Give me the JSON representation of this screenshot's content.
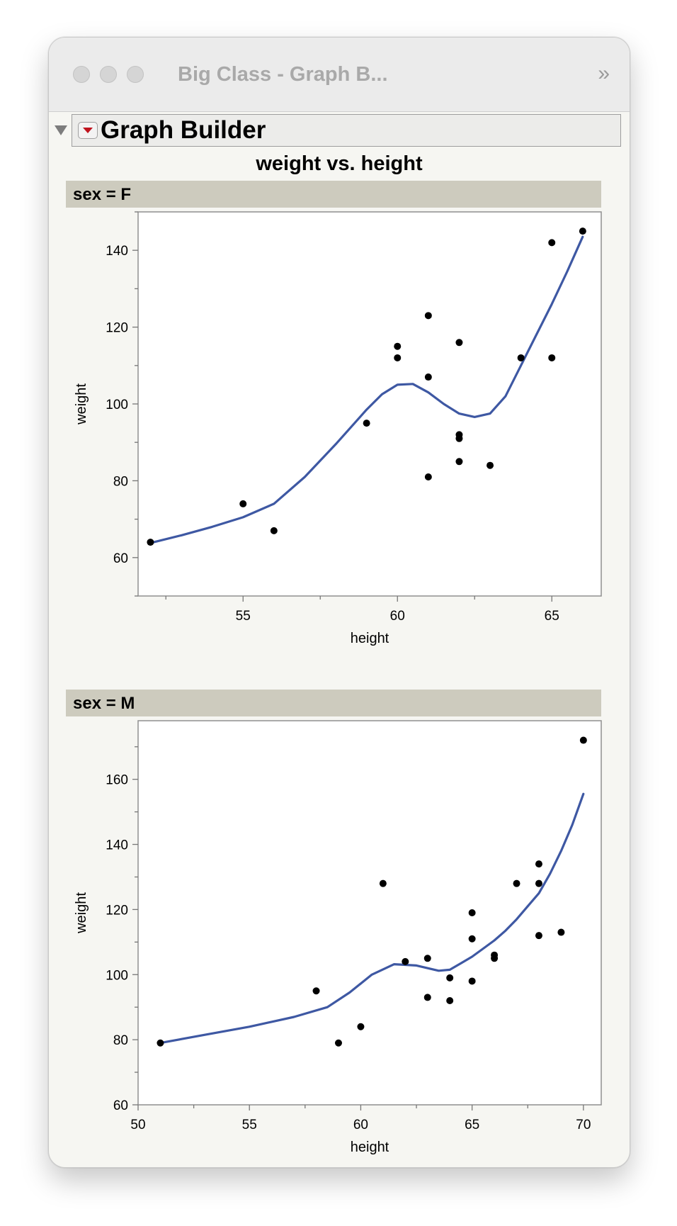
{
  "window": {
    "title": "Big Class - Graph B...",
    "more_icon": "double-chevron-right-icon"
  },
  "graph_builder": {
    "title": "Graph Builder",
    "chart_title": "weight vs. height"
  },
  "colors": {
    "smoother": "#3e58a3",
    "point": "#000000",
    "strip": "#cdcbbe"
  },
  "chart_data": [
    {
      "type": "scatter",
      "panel_label": "sex = F",
      "xlabel": "height",
      "ylabel": "weight",
      "xlim": [
        51.6,
        66.6
      ],
      "ylim": [
        50,
        150
      ],
      "xticks": [
        55,
        60,
        65
      ],
      "yticks": [
        60,
        80,
        100,
        120,
        140
      ],
      "points": [
        [
          52,
          64
        ],
        [
          55,
          74
        ],
        [
          56,
          67
        ],
        [
          59,
          95
        ],
        [
          60,
          115
        ],
        [
          60,
          112
        ],
        [
          61,
          123
        ],
        [
          61,
          107
        ],
        [
          61,
          81
        ],
        [
          62,
          116
        ],
        [
          62,
          92
        ],
        [
          62,
          91
        ],
        [
          62,
          85
        ],
        [
          63,
          84
        ],
        [
          64,
          112
        ],
        [
          65,
          142
        ],
        [
          65,
          112
        ],
        [
          66,
          145
        ]
      ],
      "smoother": [
        [
          52,
          63.8
        ],
        [
          53,
          65.8
        ],
        [
          54,
          68
        ],
        [
          55,
          70.5
        ],
        [
          56,
          74
        ],
        [
          57,
          81
        ],
        [
          58,
          89.5
        ],
        [
          59,
          98.5
        ],
        [
          59.5,
          102.5
        ],
        [
          60,
          105
        ],
        [
          60.5,
          105.2
        ],
        [
          61,
          103
        ],
        [
          61.5,
          100
        ],
        [
          62,
          97.5
        ],
        [
          62.5,
          96.6
        ],
        [
          63,
          97.5
        ],
        [
          63.5,
          102
        ],
        [
          64,
          110
        ],
        [
          64.5,
          118
        ],
        [
          65,
          126
        ],
        [
          65.5,
          134.5
        ],
        [
          66,
          143.5
        ]
      ]
    },
    {
      "type": "scatter",
      "panel_label": "sex = M",
      "xlabel": "height",
      "ylabel": "weight",
      "xlim": [
        50,
        70.8
      ],
      "ylim": [
        60,
        178
      ],
      "xticks": [
        50,
        55,
        60,
        65,
        70
      ],
      "yticks": [
        60,
        80,
        100,
        120,
        140,
        160
      ],
      "points": [
        [
          51,
          79
        ],
        [
          58,
          95
        ],
        [
          59,
          79
        ],
        [
          60,
          84
        ],
        [
          61,
          128
        ],
        [
          62,
          104
        ],
        [
          63,
          105
        ],
        [
          63,
          93
        ],
        [
          64,
          99
        ],
        [
          64,
          92
        ],
        [
          65,
          119
        ],
        [
          65,
          111
        ],
        [
          65,
          98
        ],
        [
          66,
          106
        ],
        [
          66,
          105
        ],
        [
          67,
          128
        ],
        [
          68,
          134
        ],
        [
          68,
          128
        ],
        [
          68,
          112
        ],
        [
          69,
          113
        ],
        [
          70,
          172
        ]
      ],
      "smoother": [
        [
          51,
          79
        ],
        [
          53,
          81.5
        ],
        [
          55,
          84
        ],
        [
          57,
          87
        ],
        [
          58.5,
          90
        ],
        [
          59.5,
          94.5
        ],
        [
          60.5,
          100
        ],
        [
          61.5,
          103.2
        ],
        [
          62.5,
          102.8
        ],
        [
          63.5,
          101.2
        ],
        [
          64,
          101.5
        ],
        [
          64.5,
          103.5
        ],
        [
          65,
          105.5
        ],
        [
          65.5,
          108
        ],
        [
          66,
          110.5
        ],
        [
          66.5,
          113.5
        ],
        [
          67,
          117
        ],
        [
          67.5,
          121
        ],
        [
          68,
          125
        ],
        [
          68.5,
          131
        ],
        [
          69,
          138
        ],
        [
          69.5,
          146
        ],
        [
          70,
          155.5
        ]
      ]
    }
  ]
}
